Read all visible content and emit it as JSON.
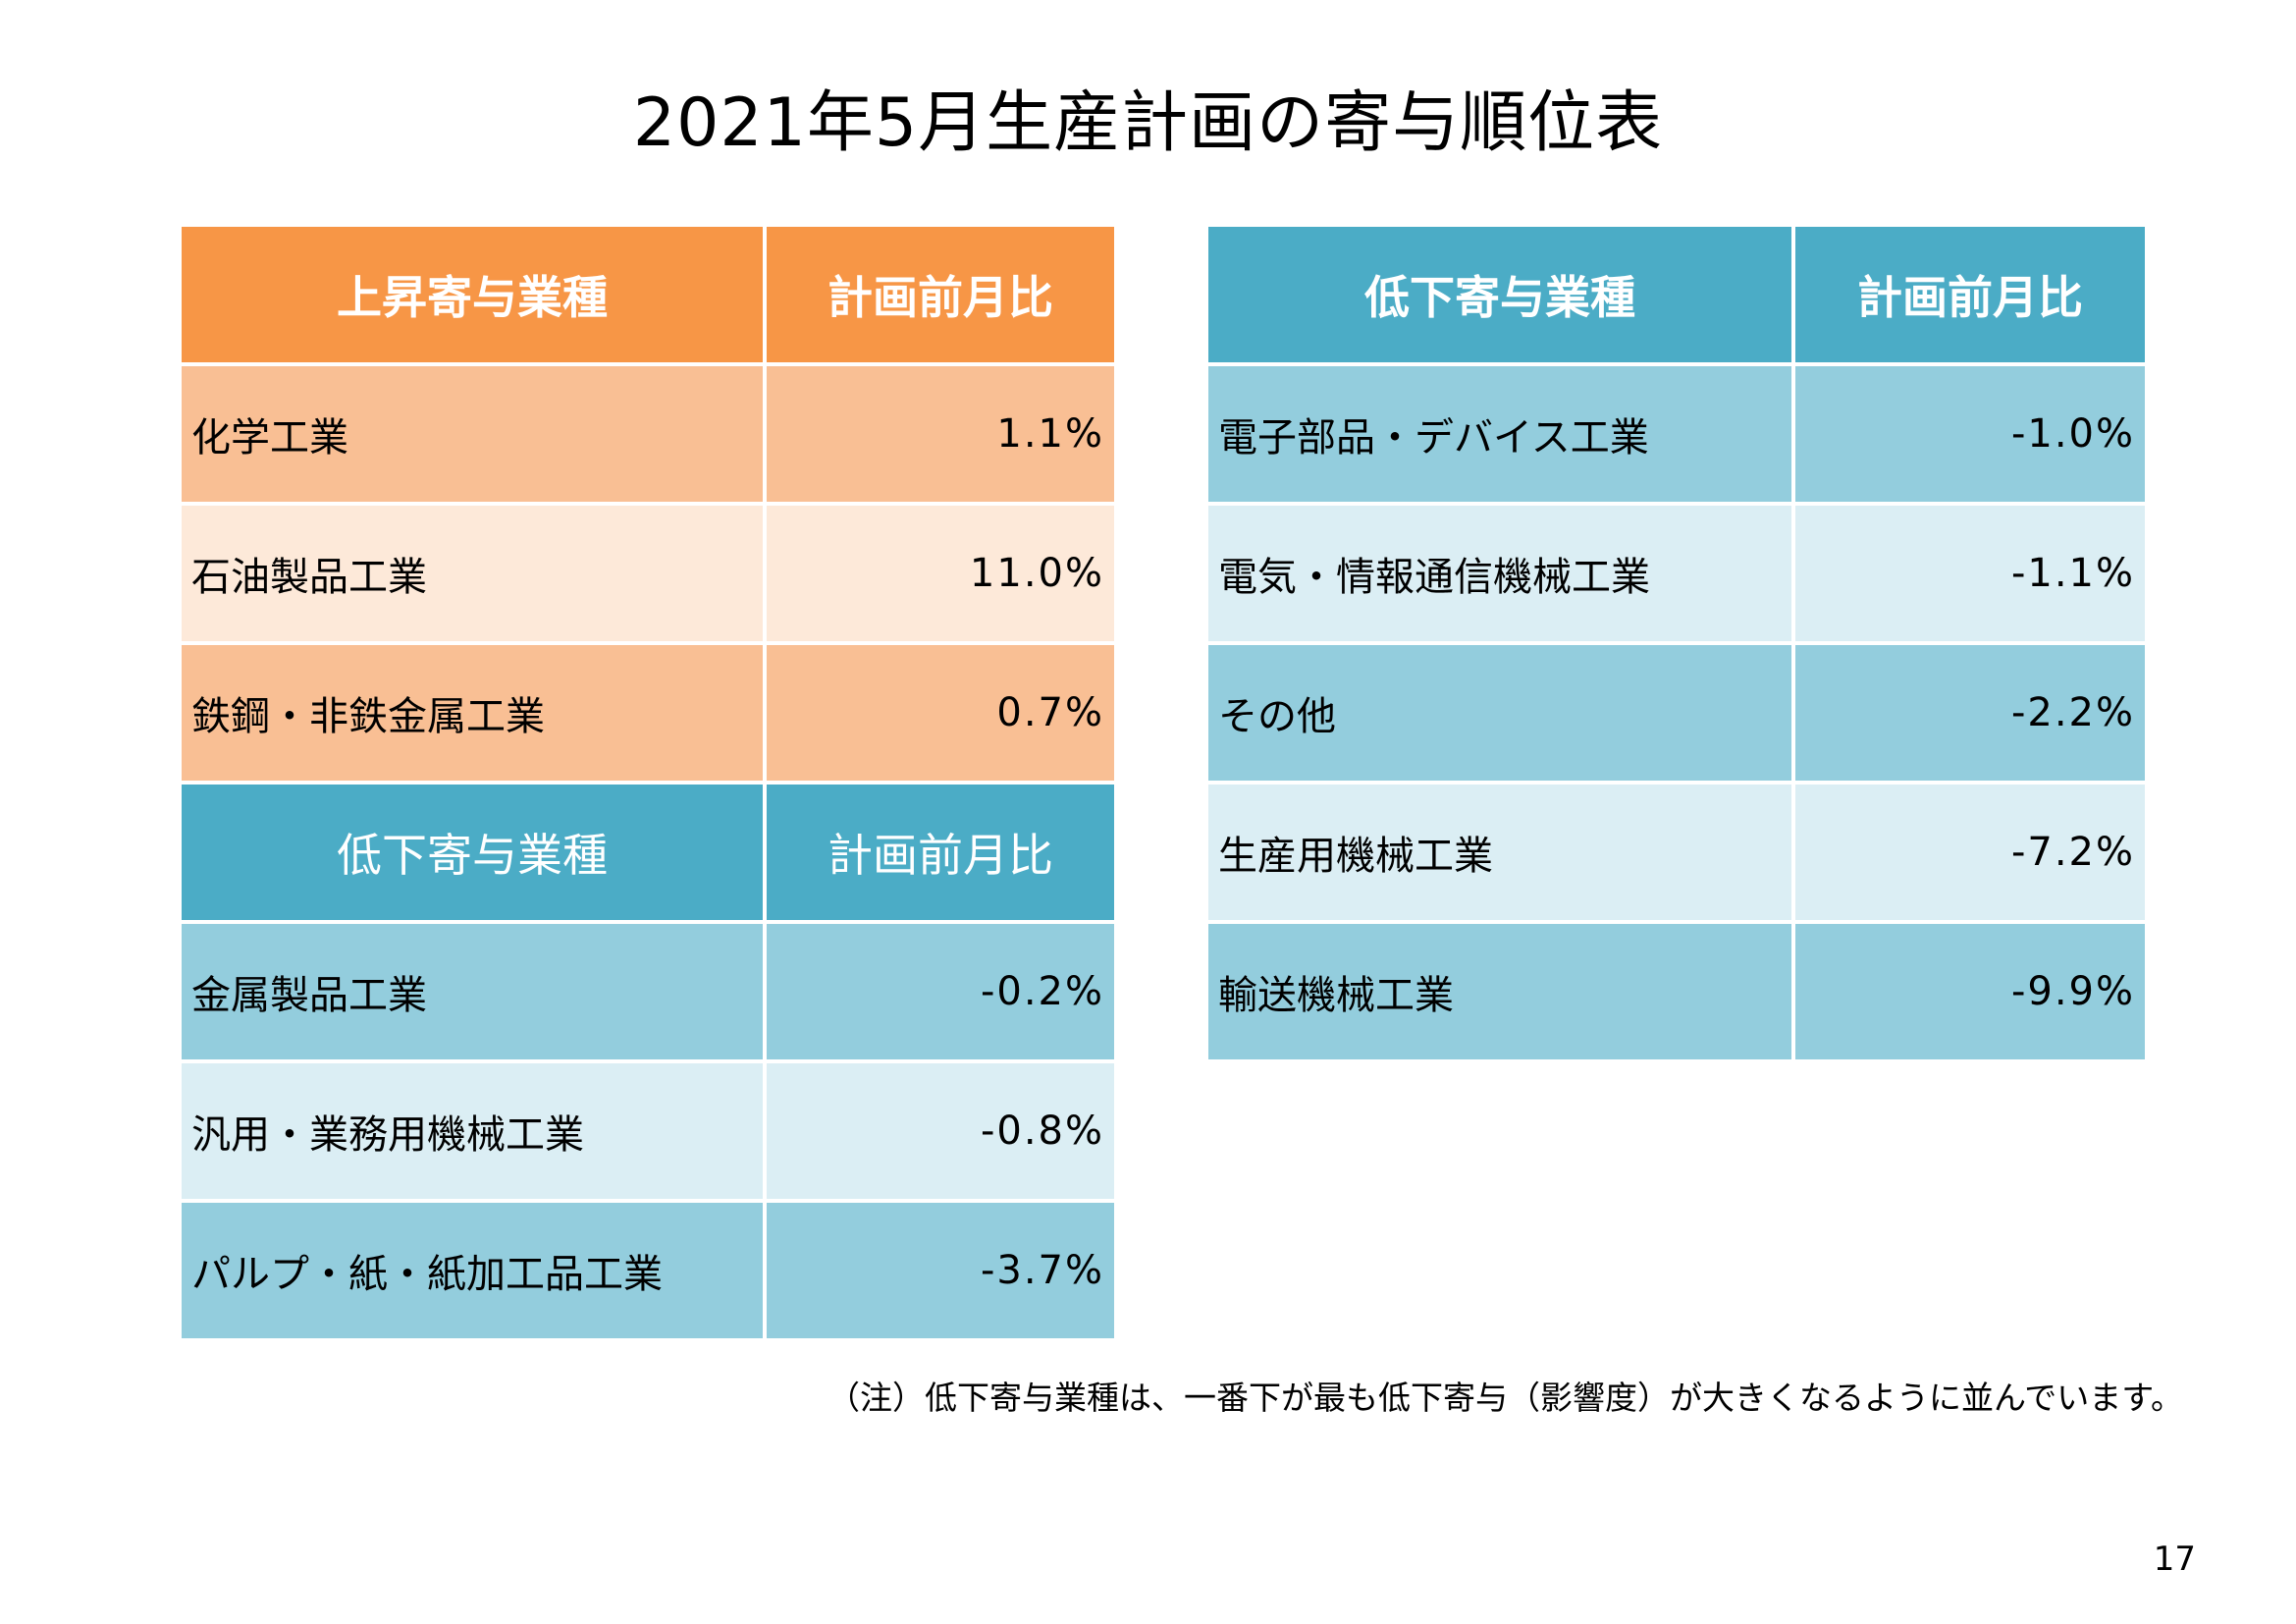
{
  "title": "2021年5月生産計画の寄与順位表",
  "left_table": {
    "rising_header": {
      "name": "上昇寄与業種",
      "value": "計画前月比"
    },
    "rising_rows": [
      {
        "name": "化学工業",
        "value": "1.1%"
      },
      {
        "name": "石油製品工業",
        "value": "11.0%"
      },
      {
        "name": "鉄鋼・非鉄金属工業",
        "value": "0.7%"
      }
    ],
    "falling_header": {
      "name": "低下寄与業種",
      "value": "計画前月比"
    },
    "falling_rows": [
      {
        "name": "金属製品工業",
        "value": "-0.2%"
      },
      {
        "name": "汎用・業務用機械工業",
        "value": "-0.8%"
      },
      {
        "name": "パルプ・紙・紙加工品工業",
        "value": "-3.7%"
      }
    ]
  },
  "right_table": {
    "header": {
      "name": "低下寄与業種",
      "value": "計画前月比"
    },
    "rows": [
      {
        "name": "電子部品・デバイス工業",
        "value": "-1.0%"
      },
      {
        "name": "電気・情報通信機械工業",
        "value": "-1.1%"
      },
      {
        "name": "その他",
        "value": "-2.2%"
      },
      {
        "name": "生産用機械工業",
        "value": "-7.2%"
      },
      {
        "name": "輸送機械工業",
        "value": "-9.9%"
      }
    ]
  },
  "note": "（注）低下寄与業種は、一番下が最も低下寄与（影響度）が大きくなるように並んでいます。",
  "page_number": "17",
  "colors": {
    "orange_header": "#f79646",
    "orange_dark": "#f9bf94",
    "orange_light": "#fde9d9",
    "blue_header": "#4bacc6",
    "blue_dark": "#93cddd",
    "blue_light": "#dbeef4"
  }
}
